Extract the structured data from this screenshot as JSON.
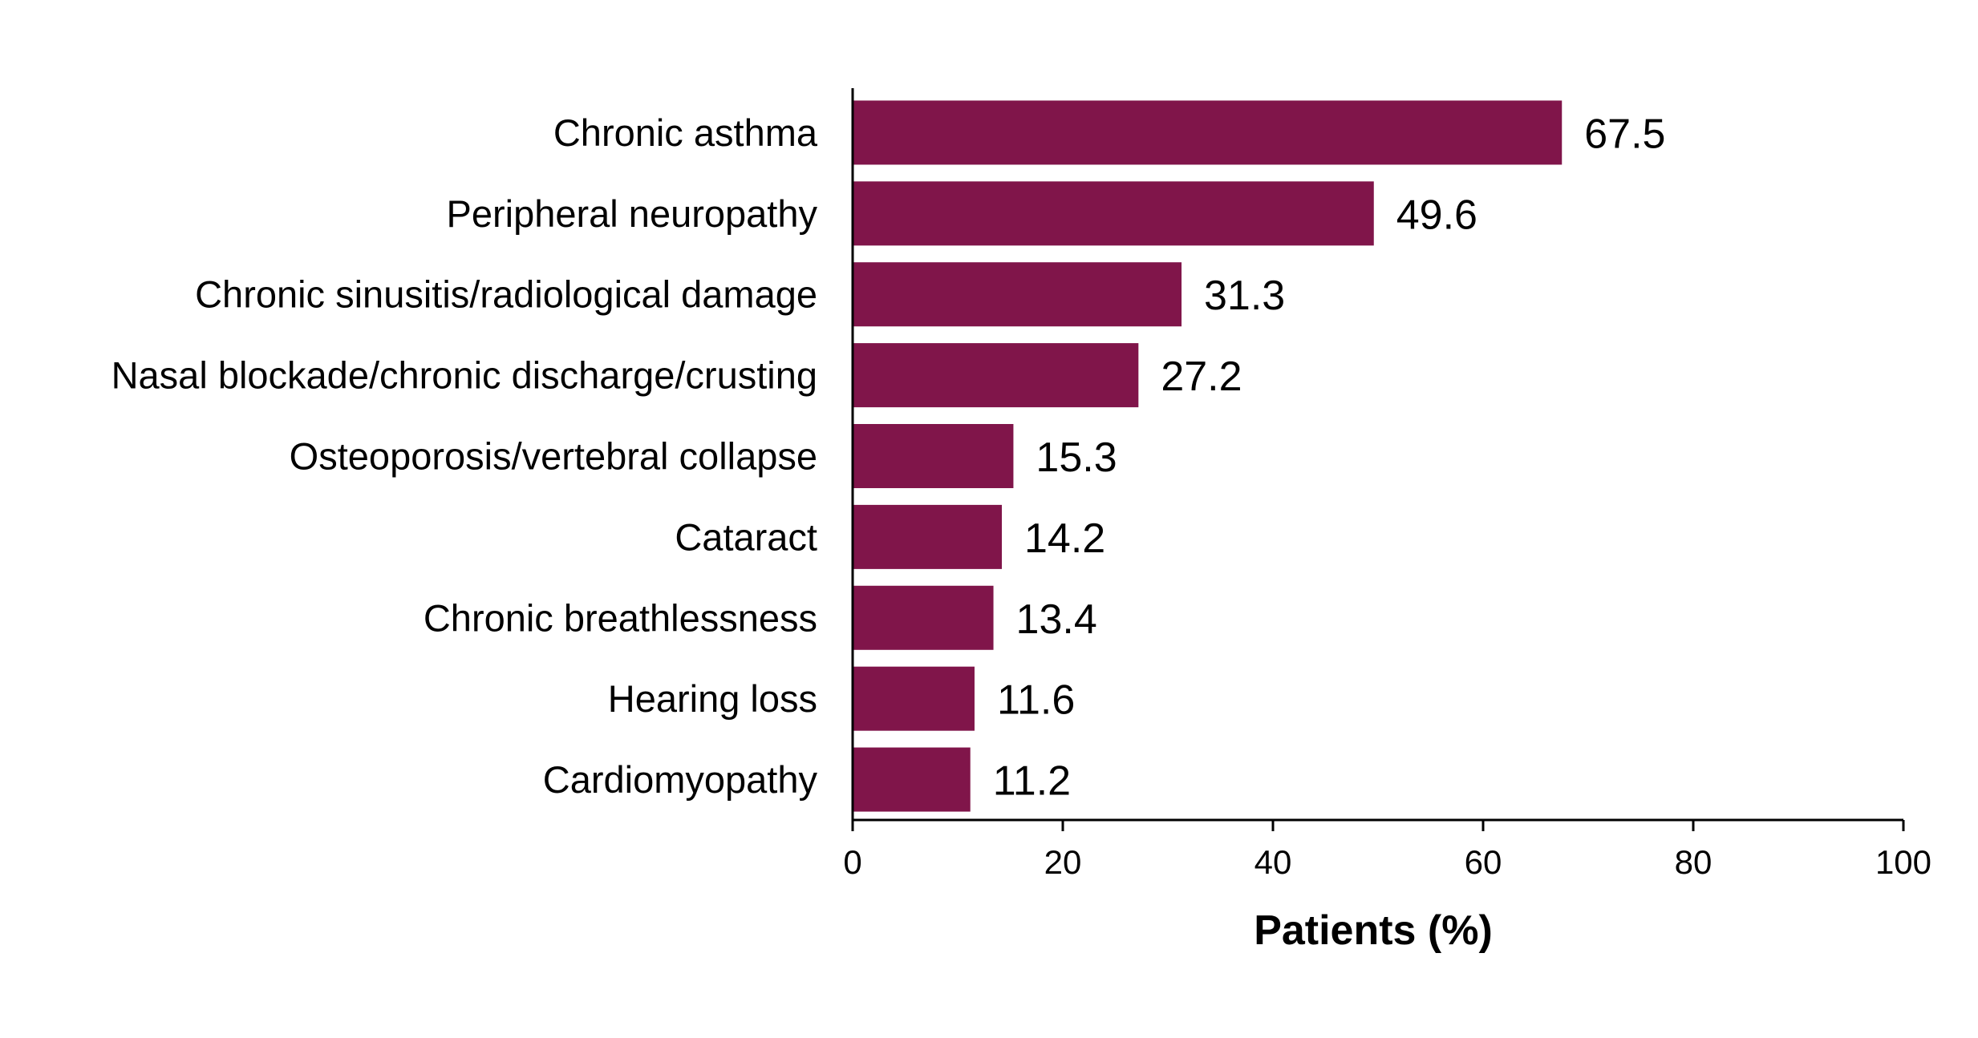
{
  "chart_data": {
    "type": "bar",
    "orientation": "horizontal",
    "categories": [
      "Chronic asthma",
      "Peripheral neuropathy",
      "Chronic sinusitis/radiological damage",
      "Nasal blockade/chronic discharge/crusting",
      "Osteoporosis/vertebral collapse",
      "Cataract",
      "Chronic breathlessness",
      "Hearing loss",
      "Cardiomyopathy"
    ],
    "values": [
      67.5,
      49.6,
      31.3,
      27.2,
      15.3,
      14.2,
      13.4,
      11.6,
      11.2
    ],
    "value_labels": [
      "67.5",
      "49.6",
      "31.3",
      "27.2",
      "15.3",
      "14.2",
      "13.4",
      "11.6",
      "11.2"
    ],
    "title": "",
    "xlabel": "Patients (%)",
    "ylabel": "",
    "xlim": [
      0,
      100
    ],
    "xticks": [
      "0",
      "20",
      "40",
      "60",
      "80",
      "100"
    ],
    "grid": false,
    "legend": "none",
    "bar_color": "#80154A"
  }
}
